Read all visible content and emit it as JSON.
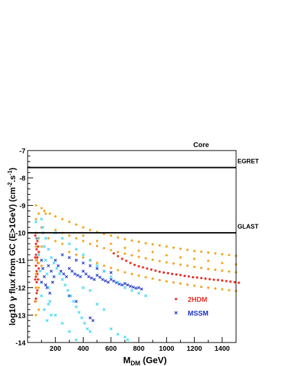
{
  "chart_data": {
    "type": "scatter",
    "title": "Core",
    "xlabel": {
      "main": "M",
      "sub": "DM",
      "unit": " (GeV)"
    },
    "ylabel": {
      "pre": "log10 ",
      "gamma": "γ",
      "mid": " flux from GC  (E>1GeV) (cm",
      "sup1": "-2",
      "dot": ".s",
      "sup2": "-1",
      "post": ")"
    },
    "xlim": [
      0,
      1500
    ],
    "ylim": [
      -14,
      -7
    ],
    "xticks": [
      200,
      400,
      600,
      800,
      1000,
      1200,
      1400
    ],
    "xtick_labels": [
      "200",
      "400",
      "600",
      "800",
      "1000",
      "1200",
      "1400"
    ],
    "yticks": [
      -14,
      -13,
      -12,
      -11,
      -10,
      -9,
      -8,
      -7
    ],
    "ytick_labels": [
      "-14",
      "-13",
      "-12",
      "-11",
      "-10",
      "-9",
      "-8",
      "-7"
    ],
    "reference_lines": [
      {
        "label": "EGRET",
        "y": -7.62
      },
      {
        "label": "GLAST",
        "y": -10.0
      }
    ],
    "legend": [
      {
        "label": "2HDM",
        "color": "#e8322a",
        "marker": "dot"
      },
      {
        "label": "MSSM",
        "color": "#1a32c8",
        "marker": "x"
      }
    ],
    "legend_placement": "lower-right",
    "series": [
      {
        "name": "2HDM",
        "color": "#e8322a",
        "marker": "dot",
        "points": [
          [
            60,
            -10.0
          ],
          [
            60,
            -10.4
          ],
          [
            60,
            -10.8
          ],
          [
            60,
            -11.2
          ],
          [
            60,
            -11.6
          ],
          [
            60,
            -12.0
          ],
          [
            60,
            -12.4
          ],
          [
            65,
            -10.2
          ],
          [
            65,
            -10.6
          ],
          [
            65,
            -11.0
          ],
          [
            65,
            -11.4
          ],
          [
            65,
            -11.8
          ],
          [
            65,
            -12.2
          ],
          [
            70,
            -10.3
          ],
          [
            70,
            -10.9
          ],
          [
            70,
            -11.5
          ],
          [
            70,
            -12.1
          ],
          [
            75,
            -10.5
          ],
          [
            75,
            -11.1
          ],
          [
            75,
            -11.7
          ],
          [
            80,
            -10.7
          ],
          [
            80,
            -11.3
          ],
          [
            55,
            -10.1
          ],
          [
            55,
            -10.9
          ],
          [
            55,
            -11.7
          ],
          [
            55,
            -12.5
          ],
          [
            620,
            -10.75
          ],
          [
            650,
            -10.85
          ],
          [
            680,
            -10.95
          ],
          [
            710,
            -11.02
          ],
          [
            740,
            -11.1
          ],
          [
            770,
            -11.17
          ],
          [
            800,
            -11.22
          ],
          [
            830,
            -11.26
          ],
          [
            860,
            -11.3
          ],
          [
            890,
            -11.34
          ],
          [
            920,
            -11.38
          ],
          [
            950,
            -11.42
          ],
          [
            980,
            -11.45
          ],
          [
            1010,
            -11.47
          ],
          [
            1040,
            -11.5
          ],
          [
            1070,
            -11.52
          ],
          [
            1100,
            -11.54
          ],
          [
            1130,
            -11.57
          ],
          [
            1160,
            -11.59
          ],
          [
            1190,
            -11.62
          ],
          [
            1220,
            -11.63
          ],
          [
            1250,
            -11.65
          ],
          [
            1280,
            -11.67
          ],
          [
            1310,
            -11.69
          ],
          [
            1340,
            -11.71
          ],
          [
            1370,
            -11.72
          ],
          [
            1400,
            -11.74
          ],
          [
            1430,
            -11.76
          ],
          [
            1460,
            -11.78
          ],
          [
            1490,
            -11.8
          ],
          [
            1520,
            -11.82
          ]
        ]
      },
      {
        "name": "",
        "color": "#f5a623",
        "marker": "dot",
        "points": [
          [
            60,
            -9.0
          ],
          [
            60,
            -9.5
          ],
          [
            60,
            -10.0
          ],
          [
            60,
            -10.5
          ],
          [
            60,
            -11.0
          ],
          [
            60,
            -11.5
          ],
          [
            60,
            -12.0
          ],
          [
            60,
            -12.5
          ],
          [
            60,
            -13.0
          ],
          [
            80,
            -9.3
          ],
          [
            80,
            -10.2
          ],
          [
            80,
            -11.1
          ],
          [
            80,
            -12.0
          ],
          [
            80,
            -12.8
          ],
          [
            100,
            -9.1
          ],
          [
            100,
            -9.8
          ],
          [
            100,
            -10.5
          ],
          [
            100,
            -11.2
          ],
          [
            120,
            -9.2
          ],
          [
            130,
            -9.3
          ],
          [
            160,
            -9.3
          ],
          [
            200,
            -9.4
          ],
          [
            250,
            -9.5
          ],
          [
            300,
            -9.6
          ],
          [
            350,
            -9.7
          ],
          [
            400,
            -9.8
          ],
          [
            450,
            -9.9
          ],
          [
            500,
            -9.97
          ],
          [
            550,
            -10.04
          ],
          [
            600,
            -10.1
          ],
          [
            650,
            -10.17
          ],
          [
            700,
            -10.23
          ],
          [
            750,
            -10.28
          ],
          [
            800,
            -10.33
          ],
          [
            850,
            -10.38
          ],
          [
            900,
            -10.42
          ],
          [
            950,
            -10.46
          ],
          [
            1000,
            -10.5
          ],
          [
            1050,
            -10.54
          ],
          [
            1100,
            -10.58
          ],
          [
            1150,
            -10.62
          ],
          [
            1200,
            -10.66
          ],
          [
            1250,
            -10.69
          ],
          [
            1300,
            -10.72
          ],
          [
            1350,
            -10.75
          ],
          [
            1400,
            -10.78
          ],
          [
            1450,
            -10.81
          ],
          [
            1500,
            -10.84
          ],
          [
            200,
            -9.9
          ],
          [
            250,
            -10.0
          ],
          [
            300,
            -10.1
          ],
          [
            350,
            -10.2
          ],
          [
            400,
            -10.3
          ],
          [
            450,
            -10.4
          ],
          [
            500,
            -10.48
          ],
          [
            550,
            -10.56
          ],
          [
            600,
            -10.63
          ],
          [
            650,
            -10.7
          ],
          [
            700,
            -10.76
          ],
          [
            750,
            -10.82
          ],
          [
            800,
            -10.88
          ],
          [
            850,
            -10.93
          ],
          [
            900,
            -10.98
          ],
          [
            950,
            -11.03
          ],
          [
            1000,
            -11.08
          ],
          [
            1050,
            -11.12
          ],
          [
            1100,
            -11.16
          ],
          [
            1150,
            -11.2
          ],
          [
            1200,
            -11.24
          ],
          [
            1250,
            -11.28
          ],
          [
            1300,
            -11.32
          ],
          [
            1350,
            -11.35
          ],
          [
            1400,
            -11.38
          ],
          [
            1450,
            -11.41
          ],
          [
            1500,
            -11.44
          ],
          [
            300,
            -10.7
          ],
          [
            350,
            -10.8
          ],
          [
            400,
            -10.9
          ],
          [
            450,
            -11.0
          ],
          [
            500,
            -11.1
          ],
          [
            550,
            -11.2
          ],
          [
            600,
            -11.28
          ],
          [
            650,
            -11.36
          ],
          [
            700,
            -11.44
          ],
          [
            750,
            -11.5
          ],
          [
            800,
            -11.56
          ],
          [
            850,
            -11.62
          ],
          [
            900,
            -11.67
          ],
          [
            950,
            -11.72
          ],
          [
            1000,
            -11.77
          ],
          [
            1050,
            -11.81
          ],
          [
            1100,
            -11.85
          ],
          [
            1150,
            -11.89
          ],
          [
            1200,
            -11.93
          ],
          [
            1250,
            -11.97
          ],
          [
            1300,
            -12.0
          ],
          [
            1350,
            -12.03
          ],
          [
            1400,
            -12.06
          ],
          [
            1450,
            -12.09
          ],
          [
            1500,
            -12.12
          ],
          [
            150,
            -10.2
          ],
          [
            200,
            -10.3
          ],
          [
            250,
            -10.4
          ],
          [
            400,
            -10.1
          ],
          [
            500,
            -10.3
          ],
          [
            600,
            -10.4
          ],
          [
            700,
            -10.55
          ],
          [
            800,
            -10.65
          ],
          [
            900,
            -10.7
          ],
          [
            1000,
            -10.82
          ],
          [
            1100,
            -10.9
          ],
          [
            1200,
            -10.95
          ],
          [
            1300,
            -11.02
          ],
          [
            1400,
            -11.1
          ],
          [
            1500,
            -11.15
          ]
        ]
      },
      {
        "name": "MSSM",
        "color": "#1a32c8",
        "marker": "x",
        "points": [
          [
            100,
            -11.0
          ],
          [
            110,
            -11.3
          ],
          [
            120,
            -11.6
          ],
          [
            130,
            -11.9
          ],
          [
            150,
            -11.2
          ],
          [
            170,
            -11.4
          ],
          [
            190,
            -11.6
          ],
          [
            200,
            -11.0
          ],
          [
            220,
            -11.2
          ],
          [
            240,
            -11.4
          ],
          [
            260,
            -11.5
          ],
          [
            280,
            -11.6
          ],
          [
            300,
            -11.3
          ],
          [
            320,
            -11.4
          ],
          [
            340,
            -11.5
          ],
          [
            360,
            -11.55
          ],
          [
            380,
            -11.6
          ],
          [
            400,
            -11.4
          ],
          [
            420,
            -11.5
          ],
          [
            440,
            -11.6
          ],
          [
            460,
            -11.65
          ],
          [
            480,
            -11.7
          ],
          [
            500,
            -11.55
          ],
          [
            520,
            -11.62
          ],
          [
            540,
            -11.7
          ],
          [
            560,
            -11.75
          ],
          [
            580,
            -11.8
          ],
          [
            600,
            -11.7
          ],
          [
            620,
            -11.76
          ],
          [
            640,
            -11.82
          ],
          [
            660,
            -11.87
          ],
          [
            680,
            -11.9
          ],
          [
            700,
            -11.85
          ],
          [
            720,
            -11.9
          ],
          [
            740,
            -11.95
          ],
          [
            760,
            -11.98
          ],
          [
            780,
            -12.02
          ],
          [
            800,
            -12.0
          ],
          [
            820,
            -12.05
          ],
          [
            250,
            -10.8
          ],
          [
            300,
            -10.9
          ],
          [
            350,
            -11.0
          ],
          [
            400,
            -11.1
          ],
          [
            450,
            -11.2
          ],
          [
            500,
            -11.3
          ],
          [
            550,
            -11.4
          ],
          [
            600,
            -11.45
          ],
          [
            300,
            -12.3
          ],
          [
            350,
            -12.5
          ],
          [
            450,
            -13.1
          ],
          [
            470,
            -13.2
          ],
          [
            100,
            -11.8
          ],
          [
            140,
            -12.0
          ],
          [
            160,
            -12.2
          ],
          [
            180,
            -11.8
          ]
        ]
      },
      {
        "name": "",
        "color": "#33d6f2",
        "marker": "x",
        "points": [
          [
            60,
            -9.6
          ],
          [
            70,
            -10.2
          ],
          [
            80,
            -10.8
          ],
          [
            90,
            -11.4
          ],
          [
            100,
            -9.5
          ],
          [
            110,
            -10.0
          ],
          [
            120,
            -10.5
          ],
          [
            130,
            -11.0
          ],
          [
            140,
            -11.5
          ],
          [
            150,
            -12.0
          ],
          [
            160,
            -12.5
          ],
          [
            170,
            -13.0
          ],
          [
            110,
            -9.8
          ],
          [
            130,
            -10.2
          ],
          [
            150,
            -10.6
          ],
          [
            170,
            -10.9
          ],
          [
            190,
            -11.1
          ],
          [
            210,
            -11.3
          ],
          [
            230,
            -11.5
          ],
          [
            250,
            -11.7
          ],
          [
            270,
            -11.9
          ],
          [
            290,
            -12.1
          ],
          [
            310,
            -12.3
          ],
          [
            330,
            -12.5
          ],
          [
            350,
            -12.7
          ],
          [
            370,
            -12.9
          ],
          [
            390,
            -13.1
          ],
          [
            410,
            -13.3
          ],
          [
            430,
            -13.5
          ],
          [
            450,
            -13.6
          ],
          [
            200,
            -10.0
          ],
          [
            250,
            -10.2
          ],
          [
            300,
            -10.4
          ],
          [
            350,
            -10.6
          ],
          [
            400,
            -10.8
          ],
          [
            450,
            -11.0
          ],
          [
            500,
            -11.2
          ],
          [
            550,
            -11.4
          ],
          [
            600,
            -11.6
          ],
          [
            650,
            -11.8
          ],
          [
            700,
            -12.0
          ],
          [
            750,
            -12.1
          ],
          [
            800,
            -12.2
          ],
          [
            850,
            -12.3
          ],
          [
            150,
            -12.6
          ],
          [
            200,
            -13.0
          ],
          [
            250,
            -13.3
          ],
          [
            300,
            -13.6
          ],
          [
            350,
            -13.9
          ],
          [
            700,
            -13.8
          ],
          [
            720,
            -13.9
          ],
          [
            600,
            -13.5
          ],
          [
            650,
            -13.7
          ],
          [
            500,
            -12.6
          ],
          [
            550,
            -12.8
          ],
          [
            400,
            -12.0
          ],
          [
            450,
            -12.1
          ],
          [
            100,
            -12.3
          ],
          [
            120,
            -12.8
          ],
          [
            140,
            -13.2
          ]
        ]
      }
    ]
  }
}
